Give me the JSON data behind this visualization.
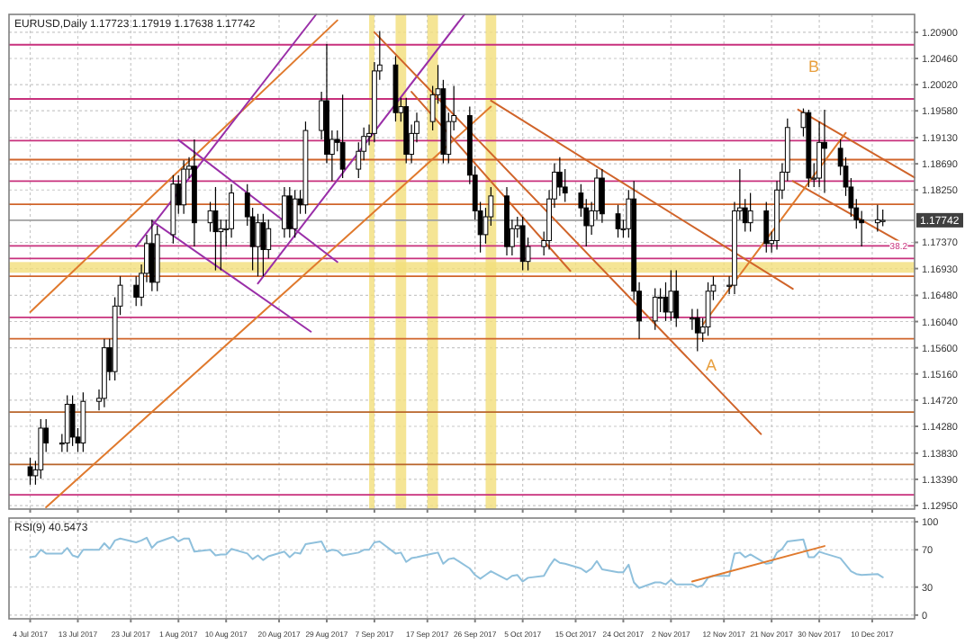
{
  "chart_data": [
    {
      "type": "candlestick",
      "title": "EURUSD,Daily  1.17723 1.17919 1.17638 1.17742",
      "x": [
        "2017-07-04",
        "2017-07-05",
        "2017-07-06",
        "2017-07-07",
        "2017-07-10",
        "2017-07-11",
        "2017-07-12",
        "2017-07-13",
        "2017-07-14",
        "2017-07-17",
        "2017-07-18",
        "2017-07-19",
        "2017-07-20",
        "2017-07-21",
        "2017-07-24",
        "2017-07-25",
        "2017-07-26",
        "2017-07-27",
        "2017-07-28",
        "2017-07-31",
        "2017-08-01",
        "2017-08-02",
        "2017-08-03",
        "2017-08-04",
        "2017-08-07",
        "2017-08-08",
        "2017-08-09",
        "2017-08-10",
        "2017-08-11",
        "2017-08-14",
        "2017-08-15",
        "2017-08-16",
        "2017-08-17",
        "2017-08-18",
        "2017-08-21",
        "2017-08-22",
        "2017-08-23",
        "2017-08-24",
        "2017-08-25",
        "2017-08-28",
        "2017-08-29",
        "2017-08-30",
        "2017-08-31",
        "2017-09-01",
        "2017-09-04",
        "2017-09-05",
        "2017-09-06",
        "2017-09-07",
        "2017-09-08",
        "2017-09-11",
        "2017-09-12",
        "2017-09-13",
        "2017-09-14",
        "2017-09-15",
        "2017-09-18",
        "2017-09-19",
        "2017-09-20",
        "2017-09-21",
        "2017-09-22",
        "2017-09-25",
        "2017-09-26",
        "2017-09-27",
        "2017-09-28",
        "2017-09-29",
        "2017-10-02",
        "2017-10-03",
        "2017-10-04",
        "2017-10-05",
        "2017-10-06",
        "2017-10-09",
        "2017-10-10",
        "2017-10-11",
        "2017-10-12",
        "2017-10-13",
        "2017-10-16",
        "2017-10-17",
        "2017-10-18",
        "2017-10-19",
        "2017-10-20",
        "2017-10-23",
        "2017-10-24",
        "2017-10-25",
        "2017-10-26",
        "2017-10-27",
        "2017-10-30",
        "2017-10-31",
        "2017-11-01",
        "2017-11-02",
        "2017-11-03",
        "2017-11-06",
        "2017-11-07",
        "2017-11-08",
        "2017-11-09",
        "2017-11-10",
        "2017-11-13",
        "2017-11-14",
        "2017-11-15",
        "2017-11-16",
        "2017-11-17",
        "2017-11-20",
        "2017-11-21",
        "2017-11-22",
        "2017-11-23",
        "2017-11-24",
        "2017-11-27",
        "2017-11-28",
        "2017-11-29",
        "2017-11-30",
        "2017-12-01",
        "2017-12-04",
        "2017-12-05",
        "2017-12-06",
        "2017-12-07",
        "2017-12-08",
        "2017-12-11",
        "2017-12-12"
      ],
      "ohlc": [
        [
          1.136,
          1.1375,
          1.133,
          1.1345
        ],
        [
          1.1345,
          1.137,
          1.133,
          1.1355
        ],
        [
          1.1355,
          1.144,
          1.134,
          1.1425
        ],
        [
          1.1425,
          1.144,
          1.1385,
          1.14
        ],
        [
          1.14,
          1.1415,
          1.1385,
          1.14
        ],
        [
          1.14,
          1.148,
          1.1385,
          1.1465
        ],
        [
          1.1465,
          1.148,
          1.1395,
          1.141
        ],
        [
          1.141,
          1.1425,
          1.1385,
          1.14
        ],
        [
          1.14,
          1.1485,
          1.1385,
          1.147
        ],
        [
          1.147,
          1.149,
          1.1455,
          1.1475
        ],
        [
          1.1475,
          1.1575,
          1.146,
          1.156
        ],
        [
          1.156,
          1.1575,
          1.1505,
          1.152
        ],
        [
          1.152,
          1.1645,
          1.1505,
          1.163
        ],
        [
          1.163,
          1.168,
          1.1615,
          1.1665
        ],
        [
          1.1665,
          1.168,
          1.163,
          1.1645
        ],
        [
          1.1645,
          1.17,
          1.163,
          1.1685
        ],
        [
          1.1685,
          1.175,
          1.167,
          1.1735
        ],
        [
          1.1735,
          1.1775,
          1.1655,
          1.167
        ],
        [
          1.167,
          1.1765,
          1.1655,
          1.175
        ],
        [
          1.175,
          1.185,
          1.1735,
          1.1835
        ],
        [
          1.1835,
          1.185,
          1.1785,
          1.18
        ],
        [
          1.18,
          1.1875,
          1.1785,
          1.186
        ],
        [
          1.186,
          1.188,
          1.1845,
          1.1865
        ],
        [
          1.1865,
          1.191,
          1.173,
          1.177
        ],
        [
          1.177,
          1.1805,
          1.1755,
          1.179
        ],
        [
          1.179,
          1.183,
          1.169,
          1.1755
        ],
        [
          1.1755,
          1.1775,
          1.169,
          1.176
        ],
        [
          1.176,
          1.1775,
          1.173,
          1.176
        ],
        [
          1.176,
          1.1835,
          1.1745,
          1.182
        ],
        [
          1.182,
          1.1835,
          1.1765,
          1.178
        ],
        [
          1.178,
          1.1795,
          1.169,
          1.173
        ],
        [
          1.173,
          1.1785,
          1.168,
          1.177
        ],
        [
          1.177,
          1.1785,
          1.168,
          1.1725
        ],
        [
          1.1725,
          1.1775,
          1.171,
          1.176
        ],
        [
          1.176,
          1.183,
          1.1745,
          1.1815
        ],
        [
          1.1815,
          1.183,
          1.1745,
          1.176
        ],
        [
          1.176,
          1.1825,
          1.1745,
          1.181
        ],
        [
          1.181,
          1.1825,
          1.1785,
          1.18
        ],
        [
          1.18,
          1.194,
          1.1785,
          1.1925
        ],
        [
          1.1925,
          1.199,
          1.191,
          1.1975
        ],
        [
          1.1975,
          1.207,
          1.187,
          1.1885
        ],
        [
          1.1885,
          1.1925,
          1.184,
          1.191
        ],
        [
          1.191,
          1.1925,
          1.189,
          1.1905
        ],
        [
          1.1905,
          1.1985,
          1.1845,
          1.186
        ],
        [
          1.186,
          1.1905,
          1.1845,
          1.189
        ],
        [
          1.189,
          1.193,
          1.1875,
          1.1915
        ],
        [
          1.1915,
          1.1935,
          1.19,
          1.192
        ],
        [
          1.192,
          1.204,
          1.1905,
          1.2025
        ],
        [
          1.2025,
          1.2092,
          1.201,
          1.2035
        ],
        [
          1.2035,
          1.205,
          1.194,
          1.1955
        ],
        [
          1.1955,
          1.198,
          1.194,
          1.1965
        ],
        [
          1.1965,
          1.198,
          1.187,
          1.1885
        ],
        [
          1.1885,
          1.1935,
          1.187,
          1.192
        ],
        [
          1.192,
          1.1955,
          1.1905,
          1.194
        ],
        [
          1.194,
          1.2,
          1.1925,
          1.1985
        ],
        [
          1.1985,
          1.2035,
          1.197,
          1.1995
        ],
        [
          1.1995,
          1.201,
          1.187,
          1.1885
        ],
        [
          1.1885,
          1.1955,
          1.187,
          1.194
        ],
        [
          1.194,
          1.2,
          1.1925,
          1.195
        ],
        [
          1.195,
          1.1965,
          1.1835,
          1.185
        ],
        [
          1.185,
          1.1865,
          1.1775,
          1.179
        ],
        [
          1.179,
          1.1805,
          1.172,
          1.175
        ],
        [
          1.175,
          1.1795,
          1.1735,
          1.178
        ],
        [
          1.178,
          1.183,
          1.1765,
          1.1815
        ],
        [
          1.1815,
          1.183,
          1.1715,
          1.173
        ],
        [
          1.173,
          1.1775,
          1.1715,
          1.176
        ],
        [
          1.176,
          1.178,
          1.1745,
          1.1765
        ],
        [
          1.1765,
          1.178,
          1.169,
          1.1705
        ],
        [
          1.1705,
          1.1745,
          1.169,
          1.173
        ],
        [
          1.173,
          1.1755,
          1.1715,
          1.174
        ],
        [
          1.174,
          1.1825,
          1.1725,
          1.181
        ],
        [
          1.181,
          1.187,
          1.1795,
          1.1855
        ],
        [
          1.1855,
          1.188,
          1.1815,
          1.183
        ],
        [
          1.183,
          1.186,
          1.1805,
          1.182
        ],
        [
          1.182,
          1.1835,
          1.178,
          1.1795
        ],
        [
          1.1795,
          1.181,
          1.173,
          1.1765
        ],
        [
          1.1765,
          1.1805,
          1.175,
          1.179
        ],
        [
          1.179,
          1.186,
          1.1775,
          1.1845
        ],
        [
          1.1845,
          1.186,
          1.177,
          1.1785
        ],
        [
          1.1785,
          1.18,
          1.1745,
          1.176
        ],
        [
          1.176,
          1.1775,
          1.1745,
          1.176
        ],
        [
          1.176,
          1.1825,
          1.1745,
          1.181
        ],
        [
          1.181,
          1.184,
          1.164,
          1.1655
        ],
        [
          1.1655,
          1.167,
          1.1575,
          1.1605
        ],
        [
          1.1605,
          1.166,
          1.159,
          1.1645
        ],
        [
          1.1645,
          1.166,
          1.162,
          1.1645
        ],
        [
          1.1645,
          1.167,
          1.1605,
          1.162
        ],
        [
          1.162,
          1.169,
          1.1605,
          1.1655
        ],
        [
          1.1655,
          1.169,
          1.1595,
          1.161
        ],
        [
          1.161,
          1.1625,
          1.159,
          1.161
        ],
        [
          1.161,
          1.1625,
          1.1554,
          1.1585
        ],
        [
          1.1585,
          1.161,
          1.157,
          1.1595
        ],
        [
          1.1595,
          1.167,
          1.158,
          1.1655
        ],
        [
          1.1655,
          1.168,
          1.164,
          1.1665
        ],
        [
          1.1665,
          1.168,
          1.165,
          1.1665
        ],
        [
          1.1665,
          1.1805,
          1.165,
          1.179
        ],
        [
          1.179,
          1.186,
          1.1775,
          1.1795
        ],
        [
          1.1795,
          1.181,
          1.1755,
          1.177
        ],
        [
          1.177,
          1.182,
          1.1755,
          1.179
        ],
        [
          1.179,
          1.1805,
          1.172,
          1.1735
        ],
        [
          1.1735,
          1.1755,
          1.172,
          1.174
        ],
        [
          1.174,
          1.184,
          1.1725,
          1.1825
        ],
        [
          1.1825,
          1.187,
          1.181,
          1.1855
        ],
        [
          1.1855,
          1.1945,
          1.184,
          1.193
        ],
        [
          1.193,
          1.1962,
          1.1915,
          1.1955
        ],
        [
          1.1955,
          1.196,
          1.183,
          1.1845
        ],
        [
          1.1845,
          1.187,
          1.183,
          1.1845
        ],
        [
          1.1845,
          1.194,
          1.183,
          1.1905
        ],
        [
          1.1905,
          1.196,
          1.182,
          1.1895
        ],
        [
          1.1895,
          1.191,
          1.185,
          1.1865
        ],
        [
          1.1865,
          1.188,
          1.1815,
          1.183
        ],
        [
          1.183,
          1.1845,
          1.178,
          1.1795
        ],
        [
          1.1795,
          1.181,
          1.176,
          1.1775
        ],
        [
          1.1775,
          1.179,
          1.173,
          1.177
        ],
        [
          1.177,
          1.18,
          1.1755,
          1.1775
        ],
        [
          1.1772,
          1.1792,
          1.1764,
          1.1774
        ]
      ],
      "series": [
        {
          "type": "line",
          "x": [
            "2017-07-07",
            "2017-09-29"
          ],
          "values": [
            1.1292,
            1.1965
          ],
          "color": "#e07a2e"
        },
        {
          "type": "line",
          "x": [
            "2017-07-04",
            "2017-08-31"
          ],
          "values": [
            1.162,
            1.211
          ],
          "color": "#e07a2e"
        },
        {
          "type": "line",
          "x": [
            "2017-08-16",
            "2017-09-24"
          ],
          "values": [
            1.1668,
            1.212
          ],
          "color": "#9a2fa8"
        },
        {
          "type": "line",
          "x": [
            "2017-07-24",
            "2017-08-27"
          ],
          "values": [
            1.173,
            1.212
          ],
          "color": "#9a2fa8"
        },
        {
          "type": "line",
          "x": [
            "2017-08-01",
            "2017-08-31"
          ],
          "values": [
            1.1909,
            1.1704
          ],
          "color": "#9a2fa8"
        },
        {
          "type": "line",
          "x": [
            "2017-07-27",
            "2017-08-26"
          ],
          "values": [
            1.1773,
            1.1587
          ],
          "color": "#9a2fa8"
        },
        {
          "type": "line",
          "x": [
            "2017-09-07",
            "2017-11-19"
          ],
          "values": [
            1.209,
            1.1415
          ],
          "color": "#d0642a"
        },
        {
          "type": "line",
          "x": [
            "2017-09-29",
            "2017-11-25"
          ],
          "values": [
            1.1975,
            1.1659
          ],
          "color": "#d0642a"
        },
        {
          "type": "line",
          "x": [
            "2017-09-14",
            "2017-10-14"
          ],
          "values": [
            1.199,
            1.1689
          ],
          "color": "#d0642a"
        },
        {
          "type": "line",
          "x": [
            "2017-11-26",
            "2017-12-18"
          ],
          "values": [
            1.196,
            1.1846
          ],
          "color": "#d0642a"
        },
        {
          "type": "line",
          "x": [
            "2017-11-25",
            "2017-12-16"
          ],
          "values": [
            1.184,
            1.1734
          ],
          "color": "#d0642a"
        },
        {
          "type": "line",
          "x": [
            "2017-11-08",
            "2017-12-05"
          ],
          "values": [
            1.1599,
            1.1921
          ],
          "color": "#e07a2e"
        }
      ],
      "xlim": [
        "2017-06-30",
        "2017-12-18"
      ],
      "ylim": [
        1.1289,
        1.212
      ],
      "yticks": [
        {
          "value": 1.1295,
          "label": "1.12950"
        },
        {
          "value": 1.1339,
          "label": "1.13390"
        },
        {
          "value": 1.1383,
          "label": "1.13830"
        },
        {
          "value": 1.1428,
          "label": "1.14280"
        },
        {
          "value": 1.1472,
          "label": "1.14720"
        },
        {
          "value": 1.1516,
          "label": "1.15160"
        },
        {
          "value": 1.156,
          "label": "1.15600"
        },
        {
          "value": 1.1604,
          "label": "1.16040"
        },
        {
          "value": 1.1648,
          "label": "1.16480"
        },
        {
          "value": 1.1693,
          "label": "1.16930"
        },
        {
          "value": 1.1737,
          "label": "1.17370"
        },
        {
          "value": 1.1825,
          "label": "1.18250"
        },
        {
          "value": 1.1869,
          "label": "1.18690"
        },
        {
          "value": 1.1913,
          "label": "1.19130"
        },
        {
          "value": 1.1958,
          "label": "1.19580"
        },
        {
          "value": 1.2002,
          "label": "1.20020"
        },
        {
          "value": 1.2046,
          "label": "1.20460"
        },
        {
          "value": 1.209,
          "label": "1.20900"
        }
      ],
      "xticks": [
        {
          "value": "2017-07-04",
          "label": null
        },
        {
          "value": "2017-07-13",
          "label": null
        },
        {
          "value": "2017-07-23",
          "label": null
        },
        {
          "value": "2017-08-01",
          "label": null
        },
        {
          "value": "2017-08-10",
          "label": null
        },
        {
          "value": "2017-08-20",
          "label": null
        },
        {
          "value": "2017-08-29",
          "label": null
        },
        {
          "value": "2017-09-07",
          "label": null
        },
        {
          "value": "2017-09-17",
          "label": null
        },
        {
          "value": "2017-09-26",
          "label": null
        },
        {
          "value": "2017-10-05",
          "label": null
        },
        {
          "value": "2017-10-15",
          "label": null
        },
        {
          "value": "2017-10-24",
          "label": null
        },
        {
          "value": "2017-11-02",
          "label": null
        },
        {
          "value": "2017-11-12",
          "label": null
        },
        {
          "value": "2017-11-21",
          "label": null
        },
        {
          "value": "2017-11-30",
          "label": null
        },
        {
          "value": "2017-12-10",
          "label": null
        }
      ],
      "tick_labels": "y",
      "grid": true,
      "ref_lines": [
        {
          "axis": "y",
          "value": 1.2069,
          "color": "#c8307c"
        },
        {
          "axis": "y",
          "value": 1.1978,
          "color": "#c8307c"
        },
        {
          "axis": "y",
          "value": 1.1908,
          "color": "#c8307c"
        },
        {
          "axis": "y",
          "value": 1.1876,
          "color": "#d0642a"
        },
        {
          "axis": "y",
          "value": 1.184,
          "color": "#c8307c"
        },
        {
          "axis": "y",
          "value": 1.1801,
          "color": "#d0642a"
        },
        {
          "axis": "y",
          "value": 1.17742,
          "label": "1.17742",
          "color": "#a0a0a0"
        },
        {
          "axis": "y",
          "value": 1.1731,
          "color": "#c8307c"
        },
        {
          "axis": "y",
          "value": 1.171,
          "color": "#c8307c"
        },
        {
          "axis": "y",
          "value": 1.168,
          "color": "#d0642a"
        },
        {
          "axis": "y",
          "value": 1.1611,
          "color": "#c8307c"
        },
        {
          "axis": "y",
          "value": 1.1575,
          "color": "#d0642a"
        },
        {
          "axis": "y",
          "value": 1.1452,
          "color": "#b8642a"
        },
        {
          "axis": "y",
          "value": 1.1364,
          "color": "#b8642a"
        },
        {
          "axis": "y",
          "value": 1.1313,
          "color": "#c8307c"
        }
      ],
      "bands": [
        {
          "axis": "y",
          "from": 1.1686,
          "to": 1.1704,
          "color": "#f3df7a"
        },
        {
          "axis": "x",
          "from": "2017-09-06",
          "to": "2017-09-07",
          "color": "#f3df7a"
        },
        {
          "axis": "x",
          "from": "2017-09-11",
          "to": "2017-09-13",
          "color": "#f3df7a"
        },
        {
          "axis": "x",
          "from": "2017-09-17",
          "to": "2017-09-19",
          "color": "#f3df7a"
        },
        {
          "axis": "x",
          "from": "2017-09-28",
          "to": "2017-09-30",
          "color": "#f3df7a"
        }
      ],
      "annotations": [
        "A",
        "B",
        {
          "text": "38.2",
          "x": "2017-12-15",
          "y": 1.1731
        }
      ]
    },
    {
      "type": "line",
      "title": "RSI(9) 40.5473",
      "x": [
        "2017-07-04",
        "2017-07-05",
        "2017-07-06",
        "2017-07-07",
        "2017-07-10",
        "2017-07-11",
        "2017-07-12",
        "2017-07-13",
        "2017-07-14",
        "2017-07-17",
        "2017-07-18",
        "2017-07-19",
        "2017-07-20",
        "2017-07-21",
        "2017-07-24",
        "2017-07-25",
        "2017-07-26",
        "2017-07-27",
        "2017-07-28",
        "2017-07-31",
        "2017-08-01",
        "2017-08-02",
        "2017-08-03",
        "2017-08-04",
        "2017-08-07",
        "2017-08-08",
        "2017-08-09",
        "2017-08-10",
        "2017-08-11",
        "2017-08-14",
        "2017-08-15",
        "2017-08-16",
        "2017-08-17",
        "2017-08-18",
        "2017-08-21",
        "2017-08-22",
        "2017-08-23",
        "2017-08-24",
        "2017-08-25",
        "2017-08-28",
        "2017-08-29",
        "2017-08-30",
        "2017-08-31",
        "2017-09-01",
        "2017-09-04",
        "2017-09-05",
        "2017-09-06",
        "2017-09-07",
        "2017-09-08",
        "2017-09-11",
        "2017-09-12",
        "2017-09-13",
        "2017-09-14",
        "2017-09-15",
        "2017-09-18",
        "2017-09-19",
        "2017-09-20",
        "2017-09-21",
        "2017-09-22",
        "2017-09-25",
        "2017-09-26",
        "2017-09-27",
        "2017-09-28",
        "2017-09-29",
        "2017-10-02",
        "2017-10-03",
        "2017-10-04",
        "2017-10-05",
        "2017-10-06",
        "2017-10-09",
        "2017-10-10",
        "2017-10-11",
        "2017-10-12",
        "2017-10-13",
        "2017-10-16",
        "2017-10-17",
        "2017-10-18",
        "2017-10-19",
        "2017-10-20",
        "2017-10-23",
        "2017-10-24",
        "2017-10-25",
        "2017-10-26",
        "2017-10-27",
        "2017-10-30",
        "2017-10-31",
        "2017-11-01",
        "2017-11-02",
        "2017-11-03",
        "2017-11-06",
        "2017-11-07",
        "2017-11-08",
        "2017-11-09",
        "2017-11-10",
        "2017-11-13",
        "2017-11-14",
        "2017-11-15",
        "2017-11-16",
        "2017-11-17",
        "2017-11-20",
        "2017-11-21",
        "2017-11-22",
        "2017-11-23",
        "2017-11-24",
        "2017-11-27",
        "2017-11-28",
        "2017-11-29",
        "2017-11-30",
        "2017-12-01",
        "2017-12-04",
        "2017-12-05",
        "2017-12-06",
        "2017-12-07",
        "2017-12-08",
        "2017-12-11",
        "2017-12-12"
      ],
      "series": [
        {
          "color": "#8fc0dc",
          "values": [
            62,
            63,
            70,
            66,
            66,
            72,
            64,
            62,
            70,
            70,
            77,
            71,
            80,
            82,
            78,
            80,
            83,
            72,
            78,
            84,
            79,
            82,
            82,
            68,
            70,
            64,
            65,
            65,
            71,
            66,
            60,
            64,
            59,
            63,
            68,
            62,
            67,
            66,
            76,
            79,
            68,
            70,
            69,
            64,
            67,
            70,
            70,
            78,
            79,
            66,
            67,
            57,
            61,
            62,
            66,
            67,
            55,
            60,
            61,
            50,
            43,
            39,
            43,
            47,
            38,
            42,
            43,
            36,
            40,
            42,
            52,
            60,
            56,
            55,
            50,
            46,
            50,
            58,
            49,
            46,
            46,
            54,
            35,
            29,
            35,
            35,
            33,
            38,
            33,
            33,
            30,
            32,
            40,
            42,
            42,
            66,
            67,
            62,
            65,
            55,
            56,
            67,
            71,
            79,
            81,
            62,
            62,
            68,
            66,
            61,
            54,
            47,
            44,
            43,
            44,
            40.5473
          ]
        },
        {
          "type": "line",
          "x": [
            "2017-11-06",
            "2017-12-01"
          ],
          "values": [
            36,
            74
          ],
          "color": "#e07a2e"
        }
      ],
      "xlim": [
        "2017-06-30",
        "2017-12-18"
      ],
      "ylim": [
        -4,
        104
      ],
      "yticks": [
        0,
        30,
        70,
        100
      ],
      "xticks": [
        {
          "value": "2017-07-04",
          "label": "4 Jul 2017"
        },
        {
          "value": "2017-07-13",
          "label": "13 Jul 2017"
        },
        {
          "value": "2017-07-23",
          "label": "23 Jul 2017"
        },
        {
          "value": "2017-08-01",
          "label": "1 Aug 2017"
        },
        {
          "value": "2017-08-10",
          "label": "10 Aug 2017"
        },
        {
          "value": "2017-08-20",
          "label": "20 Aug 2017"
        },
        {
          "value": "2017-08-29",
          "label": "29 Aug 2017"
        },
        {
          "value": "2017-09-07",
          "label": "7 Sep 2017"
        },
        {
          "value": "2017-09-17",
          "label": "17 Sep 2017"
        },
        {
          "value": "2017-09-26",
          "label": "26 Sep 2017"
        },
        {
          "value": "2017-10-05",
          "label": "5 Oct 2017"
        },
        {
          "value": "2017-10-15",
          "label": "15 Oct 2017"
        },
        {
          "value": "2017-10-24",
          "label": "24 Oct 2017"
        },
        {
          "value": "2017-11-02",
          "label": "2 Nov 2017"
        },
        {
          "value": "2017-11-12",
          "label": "12 Nov 2017"
        },
        {
          "value": "2017-11-21",
          "label": "21 Nov 2017"
        },
        {
          "value": "2017-11-30",
          "label": "30 Nov 2017"
        },
        {
          "value": "2017-12-10",
          "label": "10 Dec 2017"
        }
      ],
      "grid": true
    }
  ]
}
